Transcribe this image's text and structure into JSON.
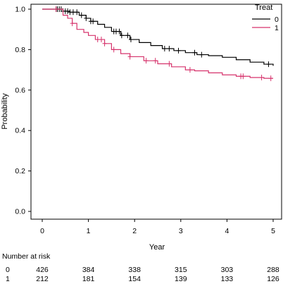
{
  "chart_data": {
    "type": "line",
    "subtype": "kaplan-meier",
    "xlabel": "Year",
    "ylabel": "Probability",
    "xlim": [
      -0.25,
      5.25
    ],
    "ylim": [
      -0.04,
      1.04
    ],
    "xticks": [
      "0",
      "1",
      "2",
      "3",
      "4",
      "5"
    ],
    "yticks": [
      "0.0",
      "0.2",
      "0.4",
      "0.6",
      "0.8",
      "1.0"
    ],
    "legend": {
      "title": "Treat",
      "position": "top-right",
      "entries": [
        {
          "label": "0",
          "color": "#000000"
        },
        {
          "label": "1",
          "color": "#d6336c"
        }
      ]
    },
    "series": [
      {
        "name": "0",
        "color": "#000000",
        "steps": [
          [
            0,
            1.0
          ],
          [
            0.35,
            1.0
          ],
          [
            0.45,
            0.99
          ],
          [
            0.6,
            0.985
          ],
          [
            0.8,
            0.97
          ],
          [
            0.95,
            0.955
          ],
          [
            1.05,
            0.94
          ],
          [
            1.2,
            0.925
          ],
          [
            1.35,
            0.91
          ],
          [
            1.5,
            0.89
          ],
          [
            1.7,
            0.87
          ],
          [
            1.9,
            0.85
          ],
          [
            2.1,
            0.835
          ],
          [
            2.35,
            0.82
          ],
          [
            2.6,
            0.805
          ],
          [
            2.85,
            0.795
          ],
          [
            3.1,
            0.785
          ],
          [
            3.35,
            0.775
          ],
          [
            3.6,
            0.77
          ],
          [
            3.9,
            0.762
          ],
          [
            4.2,
            0.75
          ],
          [
            4.5,
            0.738
          ],
          [
            4.8,
            0.728
          ],
          [
            5.0,
            0.72
          ]
        ],
        "censor_x": [
          0.3,
          0.33,
          0.37,
          0.41,
          0.45,
          0.5,
          0.55,
          0.6,
          0.67,
          0.75,
          0.85,
          0.95,
          1.05,
          1.1,
          1.55,
          1.6,
          1.67,
          1.72,
          1.85,
          1.92,
          2.65,
          2.75,
          2.95,
          3.3,
          3.45,
          4.9
        ]
      },
      {
        "name": "1",
        "color": "#d6336c",
        "steps": [
          [
            0,
            1.0
          ],
          [
            0.3,
            1.0
          ],
          [
            0.45,
            0.97
          ],
          [
            0.55,
            0.955
          ],
          [
            0.65,
            0.93
          ],
          [
            0.75,
            0.9
          ],
          [
            0.9,
            0.885
          ],
          [
            1.0,
            0.87
          ],
          [
            1.15,
            0.85
          ],
          [
            1.35,
            0.83
          ],
          [
            1.5,
            0.8
          ],
          [
            1.7,
            0.78
          ],
          [
            1.9,
            0.765
          ],
          [
            2.2,
            0.745
          ],
          [
            2.5,
            0.73
          ],
          [
            2.8,
            0.715
          ],
          [
            3.1,
            0.7
          ],
          [
            3.3,
            0.695
          ],
          [
            3.6,
            0.685
          ],
          [
            3.9,
            0.675
          ],
          [
            4.2,
            0.668
          ],
          [
            4.5,
            0.662
          ],
          [
            4.8,
            0.658
          ],
          [
            5.0,
            0.658
          ]
        ],
        "censor_x": [
          0.3,
          0.65,
          1.2,
          1.28,
          1.35,
          1.55,
          1.9,
          2.25,
          2.45,
          2.75,
          3.2,
          4.3,
          4.35,
          4.75,
          4.95
        ]
      }
    ],
    "risk_table": {
      "title": "Number at risk",
      "times": [
        0,
        1,
        2,
        3,
        4,
        5
      ],
      "rows": [
        {
          "label": "0",
          "values": [
            "426",
            "384",
            "338",
            "315",
            "303",
            "288"
          ]
        },
        {
          "label": "1",
          "values": [
            "212",
            "181",
            "154",
            "139",
            "133",
            "126"
          ]
        }
      ]
    }
  }
}
